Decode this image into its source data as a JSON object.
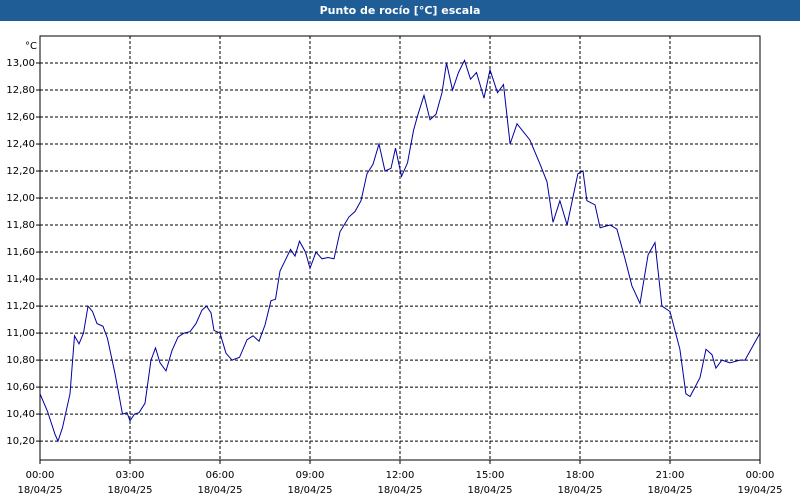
{
  "chart_data": {
    "type": "line",
    "title": "Punto de rocío [°C] escala",
    "ylabel": "°C",
    "x": [
      0,
      0.25,
      0.5,
      0.6,
      0.75,
      1.0,
      1.15,
      1.3,
      1.45,
      1.6,
      1.75,
      1.9,
      2.1,
      2.25,
      2.5,
      2.75,
      2.9,
      3.0,
      3.15,
      3.3,
      3.5,
      3.7,
      3.85,
      4.0,
      4.2,
      4.4,
      4.6,
      4.8,
      5.0,
      5.2,
      5.4,
      5.55,
      5.7,
      5.8,
      6.0,
      6.2,
      6.4,
      6.65,
      6.9,
      7.1,
      7.3,
      7.5,
      7.7,
      7.85,
      8.0,
      8.2,
      8.35,
      8.5,
      8.65,
      8.85,
      9.0,
      9.2,
      9.4,
      9.6,
      9.8,
      10.0,
      10.3,
      10.5,
      10.7,
      10.9,
      11.1,
      11.3,
      11.5,
      11.7,
      11.85,
      12.05,
      12.25,
      12.45,
      12.6,
      12.8,
      13.0,
      13.2,
      13.4,
      13.55,
      13.75,
      13.95,
      14.15,
      14.35,
      14.55,
      14.8,
      15.0,
      15.25,
      15.45,
      15.67,
      15.9,
      16.33,
      16.67,
      16.9,
      17.1,
      17.33,
      17.57,
      17.93,
      18.1,
      18.23,
      18.5,
      18.67,
      19.0,
      19.23,
      19.5,
      19.73,
      20.0,
      20.27,
      20.5,
      20.73,
      21.0,
      21.33,
      21.53,
      21.67,
      22.0,
      22.2,
      22.4,
      22.53,
      22.73,
      23.0,
      23.33,
      23.5,
      24.0
    ],
    "series": [
      {
        "name": "Punto de rocío",
        "color": "#0000a0",
        "values": [
          10.55,
          10.42,
          10.25,
          10.2,
          10.3,
          10.55,
          10.98,
          10.92,
          11.0,
          11.2,
          11.16,
          11.07,
          11.05,
          10.96,
          10.7,
          10.4,
          10.41,
          10.35,
          10.4,
          10.41,
          10.48,
          10.8,
          10.89,
          10.78,
          10.72,
          10.87,
          10.97,
          11.0,
          11.01,
          11.07,
          11.17,
          11.2,
          11.15,
          11.02,
          11.0,
          10.85,
          10.8,
          10.82,
          10.95,
          10.98,
          10.94,
          11.06,
          11.24,
          11.25,
          11.46,
          11.55,
          11.62,
          11.57,
          11.68,
          11.6,
          11.48,
          11.6,
          11.55,
          11.56,
          11.55,
          11.75,
          11.86,
          11.9,
          11.98,
          12.18,
          12.25,
          12.4,
          12.2,
          12.22,
          12.37,
          12.16,
          12.26,
          12.5,
          12.62,
          12.76,
          12.58,
          12.62,
          12.78,
          13.0,
          12.8,
          12.93,
          13.02,
          12.88,
          12.93,
          12.74,
          12.95,
          12.78,
          12.84,
          12.4,
          12.55,
          12.43,
          12.25,
          12.12,
          11.82,
          11.98,
          11.8,
          12.18,
          12.2,
          11.98,
          11.95,
          11.78,
          11.8,
          11.77,
          11.55,
          11.35,
          11.22,
          11.58,
          11.67,
          11.2,
          11.16,
          10.88,
          10.55,
          10.53,
          10.67,
          10.88,
          10.84,
          10.74,
          10.8,
          10.78,
          10.8,
          10.8,
          11.0
        ]
      }
    ],
    "xlim": [
      0,
      24
    ],
    "xticks": [
      {
        "value": 0,
        "label": "00:00"
      },
      {
        "value": 3,
        "label": "03:00"
      },
      {
        "value": 6,
        "label": "06:00"
      },
      {
        "value": 9,
        "label": "09:00"
      },
      {
        "value": 12,
        "label": "12:00"
      },
      {
        "value": 15,
        "label": "15:00"
      },
      {
        "value": 18,
        "label": "18:00"
      },
      {
        "value": 21,
        "label": "21:00"
      },
      {
        "value": 24,
        "label": "00:00"
      }
    ],
    "xtick_dates": [
      "18/04/25",
      "18/04/25",
      "18/04/25",
      "18/04/25",
      "18/04/25",
      "18/04/25",
      "18/04/25",
      "18/04/25",
      "19/04/25"
    ],
    "ylim": [
      10.06,
      13.2
    ],
    "yticks": [
      {
        "value": 10.2,
        "label": "10,20"
      },
      {
        "value": 10.4,
        "label": "10,40"
      },
      {
        "value": 10.6,
        "label": "10,60"
      },
      {
        "value": 10.8,
        "label": "10,80"
      },
      {
        "value": 11,
        "label": "11,00"
      },
      {
        "value": 11.2,
        "label": "11,20"
      },
      {
        "value": 11.4,
        "label": "11,40"
      },
      {
        "value": 11.6,
        "label": "11,60"
      },
      {
        "value": 11.8,
        "label": "11,80"
      },
      {
        "value": 12,
        "label": "12,00"
      },
      {
        "value": 12.2,
        "label": "12,20"
      },
      {
        "value": 12.4,
        "label": "12,40"
      },
      {
        "value": 12.6,
        "label": "12,60"
      },
      {
        "value": 12.8,
        "label": "12,80"
      },
      {
        "value": 13,
        "label": "13,00"
      }
    ],
    "grid": true
  }
}
